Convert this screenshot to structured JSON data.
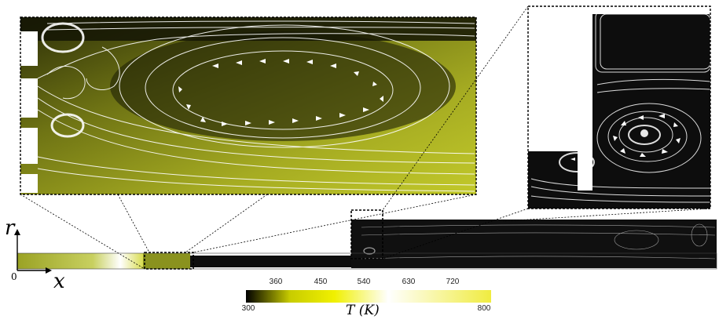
{
  "axes": {
    "r_label": "r",
    "x_label": "x",
    "origin_label": "0"
  },
  "colorbar": {
    "label": "T (K)",
    "min_label": "300",
    "max_label": "800",
    "ticks": [
      "360",
      "450",
      "540",
      "630",
      "720"
    ],
    "colors": [
      "#000000",
      "#c8cc00",
      "#f0f000",
      "#ffffff",
      "#f0ec40"
    ]
  },
  "colors": {
    "hot_fluid": "#a7ad20",
    "cold_fluid": "#111111",
    "streamline": "#ffffff",
    "frame": "#000000"
  },
  "icons": {
    "flow_arrows": "arrowhead-icon",
    "vortex": "vortex-icon"
  }
}
